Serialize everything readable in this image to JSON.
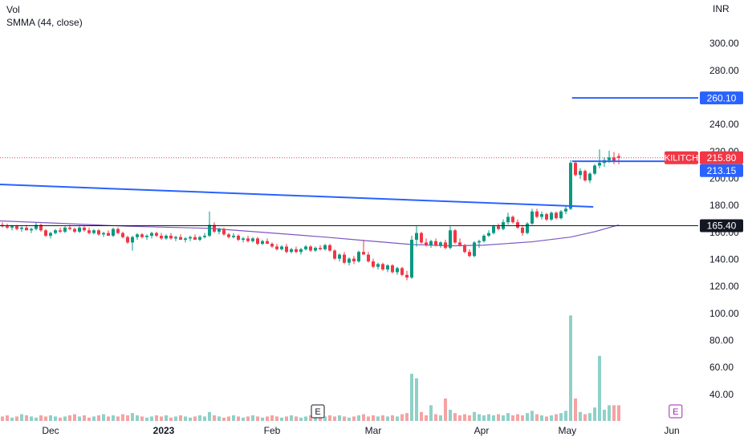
{
  "chart_data": {
    "type": "candlestick",
    "legend": [
      "Vol",
      "SMMA (44, close)"
    ],
    "currency": "INR",
    "xlim": [
      -0.5,
      144.5
    ],
    "ylim": [
      20.74,
      332.68
    ],
    "yticks": [
      {
        "value": 40,
        "label": "40.00"
      },
      {
        "value": 60,
        "label": "60.00"
      },
      {
        "value": 80,
        "label": "80.00"
      },
      {
        "value": 100,
        "label": "100.00"
      },
      {
        "value": 120,
        "label": "120.00"
      },
      {
        "value": 140,
        "label": "140.00"
      },
      {
        "value": 160,
        "label": "160.00"
      },
      {
        "value": 180,
        "label": "180.00"
      },
      {
        "value": 200,
        "label": "200.00"
      },
      {
        "value": 220,
        "label": "220.00"
      },
      {
        "value": 240,
        "label": "240.00"
      },
      {
        "value": 260,
        "label": "260.00"
      },
      {
        "value": 280,
        "label": "280.00"
      },
      {
        "value": 300,
        "label": "300.00"
      }
    ],
    "xticks": [
      {
        "value": 10,
        "label": "Dec"
      },
      {
        "value": 33.5,
        "label": "2023",
        "bold": true
      },
      {
        "value": 56,
        "label": "Feb"
      },
      {
        "value": 77,
        "label": "Mar"
      },
      {
        "value": 99.5,
        "label": "Apr"
      },
      {
        "value": 117.3,
        "label": "May"
      },
      {
        "value": 139,
        "label": "Jun"
      }
    ],
    "grid": false,
    "up_color": "#089981",
    "down_color": "#f23645",
    "volume_up_color": "#8fd1c8",
    "volume_down_color": "#f5a3a3",
    "volume_lim": [
      0,
      100
    ],
    "ohlc": [
      [
        166,
        168,
        164,
        165
      ],
      [
        165,
        167,
        163,
        164
      ],
      [
        164,
        166,
        162,
        165
      ],
      [
        165,
        166,
        162,
        163
      ],
      [
        163,
        165,
        161,
        164
      ],
      [
        164,
        166,
        162,
        162
      ],
      [
        162,
        164,
        160,
        163
      ],
      [
        163,
        168,
        162,
        166
      ],
      [
        166,
        167,
        161,
        162
      ],
      [
        162,
        163,
        157,
        158
      ],
      [
        158,
        161,
        156,
        160
      ],
      [
        160,
        163,
        159,
        162
      ],
      [
        162,
        164,
        160,
        161
      ],
      [
        161,
        165,
        160,
        164
      ],
      [
        164,
        166,
        162,
        163
      ],
      [
        163,
        164,
        160,
        161
      ],
      [
        161,
        165,
        160,
        164
      ],
      [
        164,
        165,
        161,
        162
      ],
      [
        162,
        164,
        159,
        160
      ],
      [
        160,
        163,
        159,
        162
      ],
      [
        162,
        163,
        158,
        159
      ],
      [
        159,
        161,
        157,
        160
      ],
      [
        160,
        162,
        158,
        158
      ],
      [
        158,
        164,
        157,
        163
      ],
      [
        163,
        164,
        159,
        160
      ],
      [
        160,
        161,
        156,
        157
      ],
      [
        157,
        158,
        152,
        153
      ],
      [
        153,
        158,
        147,
        157
      ],
      [
        157,
        160,
        155,
        159
      ],
      [
        159,
        160,
        156,
        157
      ],
      [
        157,
        159,
        155,
        158
      ],
      [
        158,
        161,
        156,
        160
      ],
      [
        160,
        161,
        157,
        158
      ],
      [
        158,
        160,
        155,
        156
      ],
      [
        156,
        159,
        155,
        158
      ],
      [
        158,
        160,
        155,
        156
      ],
      [
        156,
        158,
        154,
        157
      ],
      [
        157,
        159,
        155,
        155
      ],
      [
        155,
        157,
        153,
        156
      ],
      [
        156,
        158,
        154,
        157
      ],
      [
        157,
        159,
        155,
        155
      ],
      [
        155,
        158,
        154,
        157
      ],
      [
        157,
        160,
        156,
        158
      ],
      [
        158,
        176,
        157,
        166
      ],
      [
        166,
        168,
        160,
        161
      ],
      [
        161,
        164,
        159,
        163
      ],
      [
        163,
        164,
        158,
        159
      ],
      [
        159,
        160,
        156,
        157
      ],
      [
        157,
        160,
        156,
        158
      ],
      [
        158,
        159,
        154,
        155
      ],
      [
        155,
        157,
        153,
        156
      ],
      [
        156,
        158,
        153,
        154
      ],
      [
        154,
        157,
        153,
        156
      ],
      [
        156,
        157,
        151,
        152
      ],
      [
        152,
        155,
        151,
        154
      ],
      [
        154,
        156,
        152,
        152
      ],
      [
        152,
        153,
        149,
        150
      ],
      [
        150,
        152,
        147,
        148
      ],
      [
        148,
        151,
        147,
        150
      ],
      [
        150,
        152,
        145,
        146
      ],
      [
        146,
        149,
        145,
        148
      ],
      [
        148,
        150,
        145,
        146
      ],
      [
        146,
        149,
        144,
        148
      ],
      [
        148,
        151,
        147,
        150
      ],
      [
        150,
        151,
        146,
        147
      ],
      [
        147,
        150,
        146,
        149
      ],
      [
        149,
        151,
        147,
        148
      ],
      [
        148,
        152,
        147,
        151
      ],
      [
        151,
        152,
        146,
        147
      ],
      [
        147,
        148,
        140,
        141
      ],
      [
        141,
        145,
        139,
        144
      ],
      [
        144,
        146,
        137,
        138
      ],
      [
        138,
        142,
        136,
        141
      ],
      [
        141,
        143,
        137,
        139
      ],
      [
        139,
        147,
        138,
        146
      ],
      [
        146,
        155,
        144,
        144
      ],
      [
        144,
        146,
        138,
        139
      ],
      [
        139,
        141,
        134,
        135
      ],
      [
        135,
        138,
        133,
        137
      ],
      [
        137,
        138,
        132,
        133
      ],
      [
        133,
        137,
        131,
        136
      ],
      [
        136,
        137,
        130,
        131
      ],
      [
        131,
        135,
        129,
        134
      ],
      [
        134,
        135,
        128,
        129
      ],
      [
        129,
        132,
        125,
        127
      ],
      [
        127,
        158,
        126,
        155
      ],
      [
        155,
        165,
        150,
        160
      ],
      [
        160,
        161,
        152,
        153
      ],
      [
        153,
        156,
        150,
        151
      ],
      [
        151,
        155,
        149,
        154
      ],
      [
        154,
        156,
        150,
        151
      ],
      [
        151,
        154,
        149,
        153
      ],
      [
        153,
        155,
        148,
        149
      ],
      [
        149,
        165,
        148,
        162
      ],
      [
        162,
        163,
        152,
        153
      ],
      [
        153,
        156,
        150,
        151
      ],
      [
        151,
        152,
        145,
        146
      ],
      [
        146,
        148,
        142,
        143
      ],
      [
        143,
        154,
        142,
        153
      ],
      [
        153,
        155,
        149,
        154
      ],
      [
        154,
        159,
        153,
        158
      ],
      [
        158,
        162,
        157,
        160
      ],
      [
        160,
        166,
        159,
        165
      ],
      [
        165,
        167,
        162,
        163
      ],
      [
        163,
        170,
        162,
        168
      ],
      [
        168,
        175,
        166,
        172
      ],
      [
        172,
        173,
        167,
        168
      ],
      [
        168,
        170,
        163,
        164
      ],
      [
        164,
        166,
        158,
        160
      ],
      [
        160,
        168,
        159,
        167
      ],
      [
        167,
        178,
        166,
        176
      ],
      [
        176,
        178,
        171,
        172
      ],
      [
        172,
        176,
        170,
        174
      ],
      [
        174,
        175,
        169,
        170
      ],
      [
        170,
        176,
        169,
        175
      ],
      [
        175,
        176,
        170,
        171
      ],
      [
        171,
        177,
        170,
        176
      ],
      [
        176,
        180,
        174,
        178
      ],
      [
        178,
        214,
        177,
        212
      ],
      [
        212,
        213,
        202,
        203
      ],
      [
        203,
        208,
        200,
        206
      ],
      [
        206,
        207,
        198,
        199
      ],
      [
        199,
        205,
        197,
        204
      ],
      [
        204,
        211,
        203,
        210
      ],
      [
        210,
        222,
        208,
        212
      ],
      [
        212,
        216,
        209,
        214
      ],
      [
        214,
        221,
        212,
        216
      ],
      [
        216,
        220,
        211,
        213
      ],
      [
        217,
        219,
        211,
        215.8
      ]
    ],
    "volume": [
      4,
      5,
      3,
      4,
      6,
      5,
      4,
      3,
      5,
      4,
      5,
      4,
      3,
      4,
      5,
      6,
      4,
      5,
      3,
      4,
      5,
      6,
      4,
      5,
      4,
      6,
      5,
      7,
      5,
      4,
      3,
      4,
      5,
      4,
      5,
      3,
      4,
      5,
      4,
      3,
      4,
      5,
      4,
      8,
      5,
      4,
      3,
      4,
      5,
      4,
      3,
      4,
      5,
      4,
      3,
      4,
      5,
      4,
      3,
      4,
      5,
      4,
      3,
      4,
      5,
      4,
      3,
      4,
      5,
      4,
      5,
      4,
      3,
      4,
      5,
      6,
      4,
      5,
      4,
      5,
      4,
      5,
      4,
      6,
      7,
      42,
      38,
      8,
      5,
      14,
      6,
      5,
      20,
      10,
      7,
      5,
      6,
      5,
      8,
      6,
      5,
      6,
      5,
      6,
      5,
      7,
      5,
      6,
      5,
      7,
      9,
      6,
      5,
      4,
      5,
      6,
      7,
      9,
      94,
      20,
      8,
      6,
      7,
      12,
      58,
      10,
      14,
      14,
      14
    ],
    "smma": {
      "color": "#7e57c2",
      "x": [
        -0.5,
        10,
        26,
        43,
        56,
        67,
        75,
        85,
        93,
        100,
        110,
        118,
        123,
        128
      ],
      "values": [
        169,
        167.5,
        165,
        163.5,
        160,
        157,
        154.5,
        151.5,
        150.5,
        151,
        153.5,
        157,
        161,
        166
      ]
    },
    "trendline": {
      "color": "#2962ff",
      "x": [
        -0.5,
        122.7
      ],
      "values": [
        196,
        179.4
      ]
    },
    "levels": [
      {
        "value": 165.4,
        "label": "165.40",
        "color": "#131722",
        "from": -0.5,
        "width": 1
      },
      {
        "value": 260.1,
        "label": "260.10",
        "color": "#2962ff",
        "from": 118.3,
        "width": 2
      },
      {
        "value": 213.15,
        "label": "213.15",
        "color": "#2962ff",
        "from": 118.3,
        "width": 2
      }
    ],
    "last_price": {
      "name": "KILITCH",
      "value": 215.8,
      "label": "215.80",
      "color": "#f23645"
    },
    "events": [
      {
        "x": 65.5,
        "label": "E",
        "color": "#131722"
      },
      {
        "x": 139.8,
        "label": "E",
        "color": "#9c27b0"
      }
    ]
  }
}
